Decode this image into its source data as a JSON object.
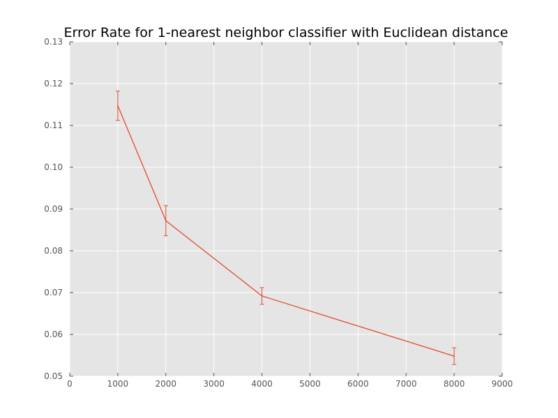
{
  "chart_data": {
    "type": "line",
    "title": "Error Rate for 1-nearest neighbor classifier with Euclidean distance",
    "xlabel": "",
    "ylabel": "",
    "xlim": [
      0,
      9000
    ],
    "ylim": [
      0.05,
      0.13
    ],
    "x_ticks": [
      0,
      1000,
      2000,
      3000,
      4000,
      5000,
      6000,
      7000,
      8000,
      9000
    ],
    "x_tick_labels": [
      "0",
      "1000",
      "2000",
      "3000",
      "4000",
      "5000",
      "6000",
      "7000",
      "8000",
      "9000"
    ],
    "y_ticks": [
      0.05,
      0.06,
      0.07,
      0.08,
      0.09,
      0.1,
      0.11,
      0.12,
      0.13
    ],
    "y_tick_labels": [
      "0.05",
      "0.06",
      "0.07",
      "0.08",
      "0.09",
      "0.10",
      "0.11",
      "0.12",
      "0.13"
    ],
    "grid": true,
    "background_color": "#e5e5e5",
    "grid_color": "#ffffff",
    "line_color": "#e24a33",
    "series": [
      {
        "x": [
          1000,
          2000,
          4000,
          8000
        ],
        "y": [
          0.1147,
          0.0872,
          0.0692,
          0.0548
        ],
        "yerr": [
          0.0035,
          0.0036,
          0.002,
          0.002
        ]
      }
    ]
  }
}
